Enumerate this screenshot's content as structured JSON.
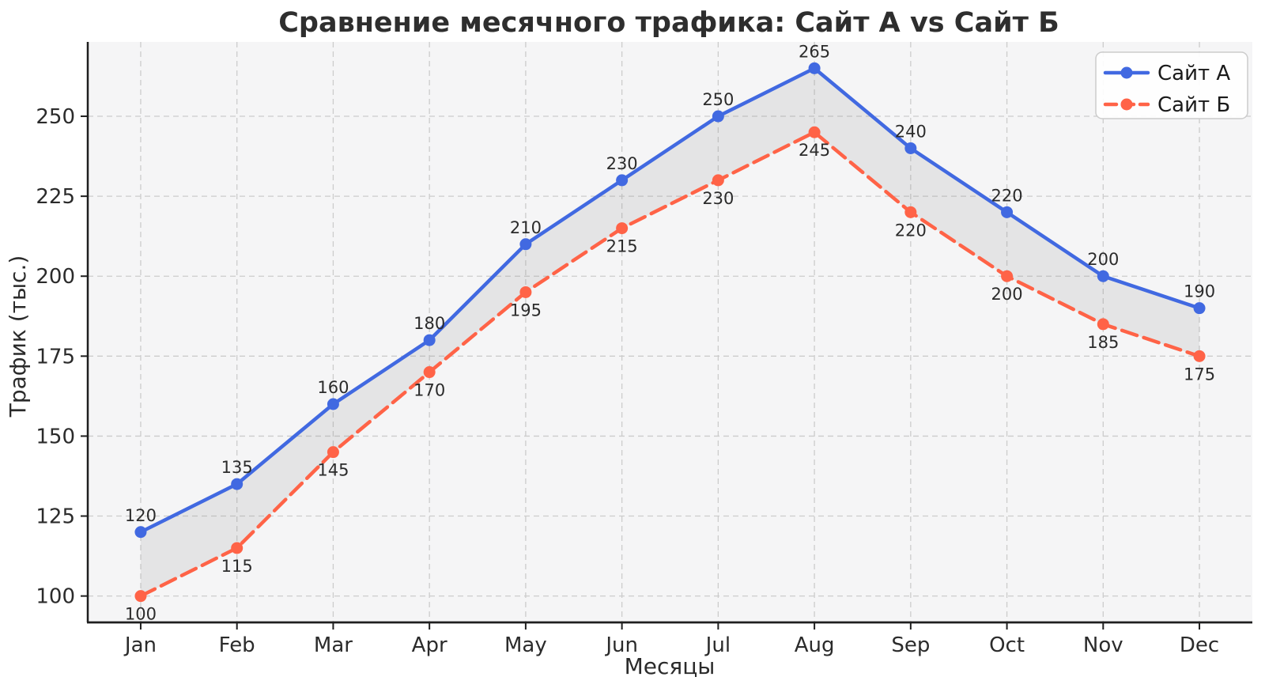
{
  "figure": {
    "background": "#ffffff",
    "plot_background": "#f5f5f6",
    "grid_color": "#cccccc",
    "spine_color": "#1f1f1f",
    "text_color": "#2b2b2b"
  },
  "chart_data": {
    "type": "line",
    "title": "Сравнение месячного трафика: Сайт А vs Сайт Б",
    "xlabel": "Месяцы",
    "ylabel": "Трафик (тыс.)",
    "categories": [
      "Jan",
      "Feb",
      "Mar",
      "Apr",
      "May",
      "Jun",
      "Jul",
      "Aug",
      "Sep",
      "Oct",
      "Nov",
      "Dec"
    ],
    "yticks": [
      100,
      125,
      150,
      175,
      200,
      225,
      250
    ],
    "ylim": [
      91.75,
      273.25
    ],
    "xlim": [
      -0.55,
      11.55
    ],
    "grid": true,
    "grid_style": "dashed",
    "legend_position": "top-right",
    "series": [
      {
        "name": "Сайт А",
        "color": "#4169E1",
        "line_style": "solid",
        "marker": "circle",
        "label_position": "above",
        "values": [
          120,
          135,
          160,
          180,
          210,
          230,
          250,
          265,
          240,
          220,
          200,
          190
        ]
      },
      {
        "name": "Сайт Б",
        "color": "#FF6347",
        "line_style": "dashed",
        "marker": "circle",
        "label_position": "below",
        "values": [
          100,
          115,
          145,
          170,
          195,
          215,
          230,
          245,
          220,
          200,
          185,
          175
        ]
      }
    ],
    "fill_between": {
      "color": "#808080",
      "opacity": 0.14
    }
  },
  "legend": {
    "items": [
      {
        "label": "Сайт А",
        "color": "#4169E1",
        "style": "solid"
      },
      {
        "label": "Сайт Б",
        "color": "#FF6347",
        "style": "dashed"
      }
    ]
  }
}
